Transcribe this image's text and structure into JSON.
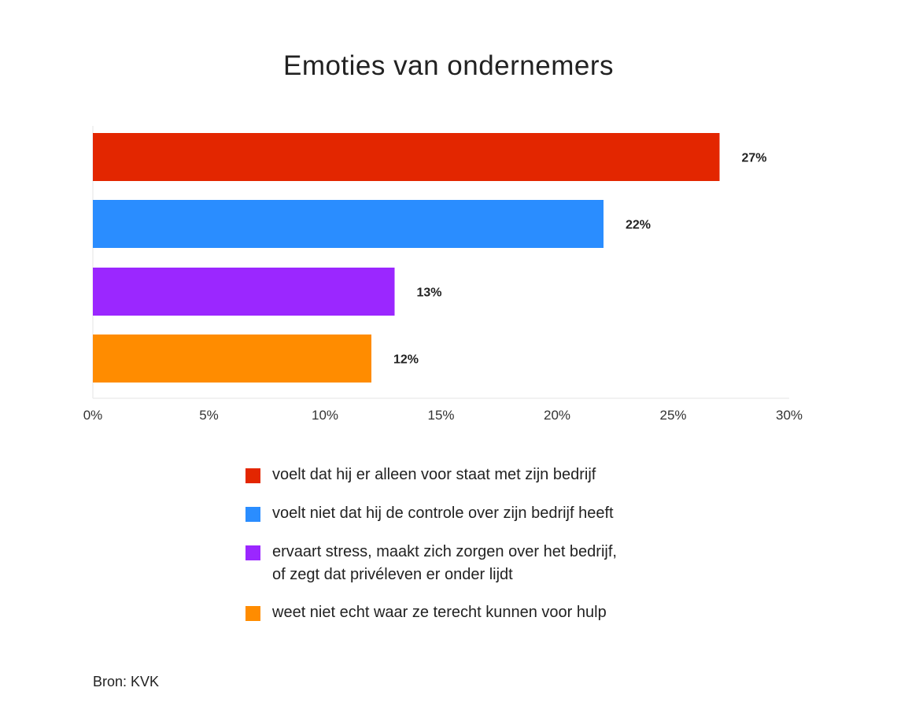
{
  "chart_data": {
    "type": "bar",
    "orientation": "horizontal",
    "title": "Emoties van ondernemers",
    "categories": [
      "voelt dat hij er alleen voor staat met zijn bedrijf",
      "voelt niet dat hij de controle over zijn bedrijf heeft",
      "ervaart stress, maakt zich zorgen over het bedrijf, of zegt dat privéleven er onder lijdt",
      "weet niet echt waar ze terecht kunnen voor hulp"
    ],
    "legend_lines": [
      [
        "voelt dat hij er alleen voor staat met zijn bedrijf"
      ],
      [
        "voelt niet dat hij de controle over zijn bedrijf heeft"
      ],
      [
        "ervaart stress, maakt zich zorgen over het bedrijf,",
        "of zegt dat privéleven er onder lijdt"
      ],
      [
        "weet niet echt waar ze terecht kunnen voor hulp"
      ]
    ],
    "values": [
      27,
      22,
      13,
      12
    ],
    "data_labels": [
      "27%",
      "22%",
      "13%",
      "12%"
    ],
    "colors": [
      "#e32600",
      "#2a8dff",
      "#9b27ff",
      "#ff8c00"
    ],
    "xlim": [
      0,
      30
    ],
    "xticks": [
      0,
      5,
      10,
      15,
      20,
      25,
      30
    ],
    "xtick_labels": [
      "0%",
      "5%",
      "10%",
      "15%",
      "20%",
      "25%",
      "30%"
    ],
    "xlabel": "",
    "ylabel": "",
    "grid": false,
    "legend_position": "bottom"
  },
  "source": "Bron: KVK"
}
